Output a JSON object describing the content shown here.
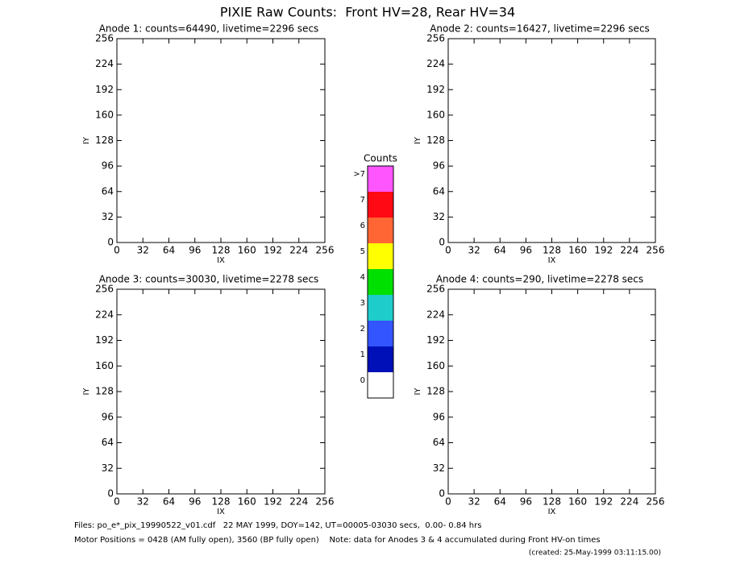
{
  "page": {
    "title": "PIXIE Raw Counts:  Front HV=28, Rear HV=34",
    "files": "Files: po_e*_pix_19990522_v01.cdf   22 MAY 1999, DOY=142, UT=00005-03030 secs,  0.00- 0.84 hrs",
    "motor": "Motor Positions = 0428 (AM fully open), 3560 (BP fully open)    Note: data for Anodes 3 & 4 accumulated during Front HV-on times",
    "created": "(created: 25-May-1999 03:11:15.00)"
  },
  "colorbar": {
    "title": "Counts",
    "labels": [
      ">7",
      "7",
      "6",
      "5",
      "4",
      "3",
      "2",
      "1",
      "0"
    ],
    "colors": [
      "#ff55ff",
      "#ff0a14",
      "#ff6633",
      "#ffff00",
      "#00e000",
      "#1ecccc",
      "#3355ff",
      "#0010b8",
      "#ffffff"
    ]
  },
  "chart_data": [
    {
      "type": "heatmap",
      "title": "Anode 1: counts=64490, livetime=2296 secs",
      "xlabel": "IX",
      "ylabel": "IY",
      "xlim": [
        0,
        256
      ],
      "ylim": [
        0,
        256
      ],
      "xticks": [
        0,
        32,
        64,
        96,
        128,
        160,
        192,
        224,
        256
      ],
      "yticks": [
        0,
        32,
        64,
        96,
        128,
        160,
        192,
        224,
        256
      ]
    },
    {
      "type": "heatmap",
      "title": "Anode 2: counts=16427, livetime=2296 secs",
      "xlabel": "IX",
      "ylabel": "IY",
      "xlim": [
        0,
        256
      ],
      "ylim": [
        0,
        256
      ],
      "xticks": [
        0,
        32,
        64,
        96,
        128,
        160,
        192,
        224,
        256
      ],
      "yticks": [
        0,
        32,
        64,
        96,
        128,
        160,
        192,
        224,
        256
      ]
    },
    {
      "type": "heatmap",
      "title": "Anode 3: counts=30030, livetime=2278 secs",
      "xlabel": "IX",
      "ylabel": "IY",
      "xlim": [
        0,
        256
      ],
      "ylim": [
        0,
        256
      ],
      "xticks": [
        0,
        32,
        64,
        96,
        128,
        160,
        192,
        224,
        256
      ],
      "yticks": [
        0,
        32,
        64,
        96,
        128,
        160,
        192,
        224,
        256
      ]
    },
    {
      "type": "heatmap",
      "title": "Anode 4: counts=290, livetime=2278 secs",
      "xlabel": "IX",
      "ylabel": "IY",
      "xlim": [
        0,
        256
      ],
      "ylim": [
        0,
        256
      ],
      "xticks": [
        0,
        32,
        64,
        96,
        128,
        160,
        192,
        224,
        256
      ],
      "yticks": [
        0,
        32,
        64,
        96,
        128,
        160,
        192,
        224,
        256
      ]
    }
  ]
}
